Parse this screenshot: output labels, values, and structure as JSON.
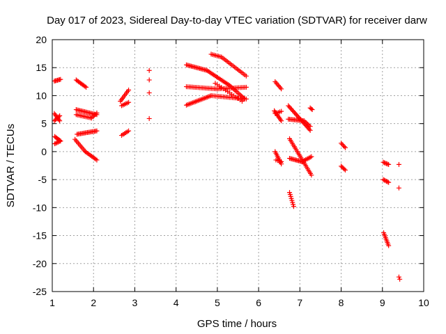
{
  "chart_data": {
    "type": "scatter",
    "title": "Day 017 of 2023, Sidereal Day-to-day VTEC variation (SDTVAR) for receiver darw",
    "xlabel": "GPS time / hours",
    "ylabel": "SDTVAR / TECUs",
    "xlim": [
      1,
      10
    ],
    "ylim": [
      -25,
      20
    ],
    "xticks": [
      1,
      2,
      3,
      4,
      5,
      6,
      7,
      8,
      9,
      10
    ],
    "yticks": [
      -25,
      -20,
      -15,
      -10,
      -5,
      0,
      5,
      10,
      15,
      20
    ],
    "grid": true,
    "marker": "+",
    "color": "#ff0000",
    "segments": [
      {
        "x0": 1.05,
        "y0": 12.6,
        "x1": 1.2,
        "y1": 12.9,
        "n": 7
      },
      {
        "x0": 1.05,
        "y0": 6.8,
        "x1": 1.18,
        "y1": 5.5,
        "n": 7
      },
      {
        "x0": 1.05,
        "y0": 5.5,
        "x1": 1.18,
        "y1": 6.4,
        "n": 6
      },
      {
        "x0": 1.06,
        "y0": 2.7,
        "x1": 1.2,
        "y1": 1.9,
        "n": 7
      },
      {
        "x0": 1.06,
        "y0": 1.4,
        "x1": 1.2,
        "y1": 1.9,
        "n": 6
      },
      {
        "x0": 1.58,
        "y0": 12.8,
        "x1": 1.82,
        "y1": 11.5,
        "n": 10
      },
      {
        "x0": 1.58,
        "y0": 7.5,
        "x1": 2.08,
        "y1": 6.6,
        "n": 18
      },
      {
        "x0": 1.58,
        "y0": 6.6,
        "x1": 1.95,
        "y1": 6.0,
        "n": 12
      },
      {
        "x0": 1.95,
        "y0": 6.0,
        "x1": 2.08,
        "y1": 6.9,
        "n": 5
      },
      {
        "x0": 1.6,
        "y0": 3.1,
        "x1": 2.08,
        "y1": 3.7,
        "n": 18
      },
      {
        "x0": 1.55,
        "y0": 2.2,
        "x1": 1.8,
        "y1": 0.0,
        "n": 10
      },
      {
        "x0": 1.8,
        "y0": 0.0,
        "x1": 2.08,
        "y1": -1.5,
        "n": 10
      },
      {
        "x0": 2.65,
        "y0": 9.0,
        "x1": 2.85,
        "y1": 11.0,
        "n": 9
      },
      {
        "x0": 2.68,
        "y0": 8.2,
        "x1": 2.85,
        "y1": 8.8,
        "n": 6
      },
      {
        "x0": 2.68,
        "y0": 2.9,
        "x1": 2.85,
        "y1": 3.7,
        "n": 6
      },
      {
        "x0": 3.35,
        "y0": 14.5,
        "x1": 3.35,
        "y1": 14.5,
        "n": 1
      },
      {
        "x0": 3.35,
        "y0": 12.8,
        "x1": 3.35,
        "y1": 12.8,
        "n": 1
      },
      {
        "x0": 3.35,
        "y0": 10.5,
        "x1": 3.35,
        "y1": 10.5,
        "n": 1
      },
      {
        "x0": 3.35,
        "y0": 5.9,
        "x1": 3.35,
        "y1": 5.9,
        "n": 1
      },
      {
        "x0": 4.25,
        "y0": 15.5,
        "x1": 4.75,
        "y1": 14.5,
        "n": 18
      },
      {
        "x0": 4.75,
        "y0": 14.5,
        "x1": 5.3,
        "y1": 11.8,
        "n": 18
      },
      {
        "x0": 5.3,
        "y0": 11.8,
        "x1": 5.65,
        "y1": 9.5,
        "n": 12
      },
      {
        "x0": 4.25,
        "y0": 11.6,
        "x1": 5.0,
        "y1": 11.2,
        "n": 22
      },
      {
        "x0": 5.0,
        "y0": 11.2,
        "x1": 5.7,
        "y1": 11.5,
        "n": 20
      },
      {
        "x0": 4.25,
        "y0": 8.3,
        "x1": 4.85,
        "y1": 10.0,
        "n": 20
      },
      {
        "x0": 4.85,
        "y0": 10.0,
        "x1": 5.7,
        "y1": 9.4,
        "n": 24
      },
      {
        "x0": 4.85,
        "y0": 17.4,
        "x1": 5.1,
        "y1": 16.9,
        "n": 8
      },
      {
        "x0": 5.1,
        "y0": 16.9,
        "x1": 5.7,
        "y1": 13.5,
        "n": 18
      },
      {
        "x0": 4.95,
        "y0": 12.2,
        "x1": 5.6,
        "y1": 9.0,
        "n": 14
      },
      {
        "x0": 6.4,
        "y0": 12.5,
        "x1": 6.55,
        "y1": 11.2,
        "n": 7
      },
      {
        "x0": 6.38,
        "y0": 7.3,
        "x1": 6.55,
        "y1": 5.5,
        "n": 9
      },
      {
        "x0": 6.4,
        "y0": 6.8,
        "x1": 6.55,
        "y1": 7.2,
        "n": 5
      },
      {
        "x0": 6.4,
        "y0": 0.0,
        "x1": 6.55,
        "y1": -2.2,
        "n": 9
      },
      {
        "x0": 6.42,
        "y0": -1.5,
        "x1": 6.55,
        "y1": -1.8,
        "n": 4
      },
      {
        "x0": 6.72,
        "y0": 8.2,
        "x1": 7.25,
        "y1": 3.8,
        "n": 22
      },
      {
        "x0": 6.72,
        "y0": 5.8,
        "x1": 7.1,
        "y1": 5.5,
        "n": 14
      },
      {
        "x0": 7.1,
        "y0": 5.5,
        "x1": 7.25,
        "y1": 4.5,
        "n": 6
      },
      {
        "x0": 6.75,
        "y0": 2.3,
        "x1": 7.28,
        "y1": -4.2,
        "n": 24
      },
      {
        "x0": 6.75,
        "y0": -1.2,
        "x1": 7.05,
        "y1": -1.8,
        "n": 12
      },
      {
        "x0": 7.05,
        "y0": -1.8,
        "x1": 7.28,
        "y1": -0.9,
        "n": 9
      },
      {
        "x0": 6.75,
        "y0": -7.3,
        "x1": 6.85,
        "y1": -9.8,
        "n": 8
      },
      {
        "x0": 7.25,
        "y0": 7.8,
        "x1": 7.3,
        "y1": 7.5,
        "n": 3
      },
      {
        "x0": 8.0,
        "y0": 1.5,
        "x1": 8.1,
        "y1": 0.7,
        "n": 5
      },
      {
        "x0": 8.0,
        "y0": -2.6,
        "x1": 8.1,
        "y1": -3.3,
        "n": 5
      },
      {
        "x0": 9.02,
        "y0": -1.9,
        "x1": 9.15,
        "y1": -2.3,
        "n": 6
      },
      {
        "x0": 9.02,
        "y0": -5.0,
        "x1": 9.15,
        "y1": -5.5,
        "n": 6
      },
      {
        "x0": 9.03,
        "y0": -14.5,
        "x1": 9.15,
        "y1": -16.8,
        "n": 9
      },
      {
        "x0": 9.4,
        "y0": -2.3,
        "x1": 9.4,
        "y1": -2.3,
        "n": 1
      },
      {
        "x0": 9.4,
        "y0": -6.5,
        "x1": 9.4,
        "y1": -6.5,
        "n": 1
      },
      {
        "x0": 9.4,
        "y0": -22.4,
        "x1": 9.42,
        "y1": -22.8,
        "n": 2
      }
    ]
  }
}
